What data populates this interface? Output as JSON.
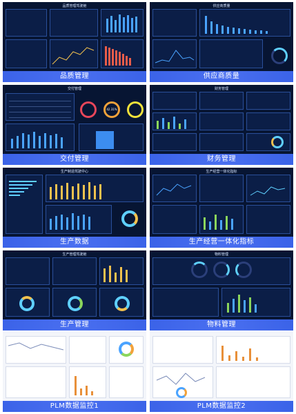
{
  "tiles": [
    {
      "id": "quality",
      "caption": "品质管理",
      "header": "品质管理驾驶舱",
      "style": "dark"
    },
    {
      "id": "supply",
      "caption": "供应商质量",
      "header": "供应商质量",
      "style": "dark"
    },
    {
      "id": "delivery",
      "caption": "交付管理",
      "header": "交付管理",
      "style": "dark",
      "gauges": [
        "",
        "42.31%",
        ""
      ]
    },
    {
      "id": "finance",
      "caption": "财务管理",
      "header": "财务管理",
      "style": "dark"
    },
    {
      "id": "production-data",
      "caption": "生产数据",
      "header": "生产制造驾驶中心",
      "style": "dark"
    },
    {
      "id": "operations",
      "caption": "生产经营一体化指标",
      "header": "生产经营一体化指标",
      "style": "dark"
    },
    {
      "id": "production-mgmt",
      "caption": "生产管理",
      "header": "生产管理驾驶舱",
      "style": "dark"
    },
    {
      "id": "materials",
      "caption": "物料管理",
      "header": "物料管理",
      "style": "dark"
    },
    {
      "id": "plm1",
      "caption": "PLM数据监控1",
      "header": "",
      "style": "light"
    },
    {
      "id": "plm2",
      "caption": "PLM数据监控2",
      "header": "",
      "style": "light"
    }
  ]
}
